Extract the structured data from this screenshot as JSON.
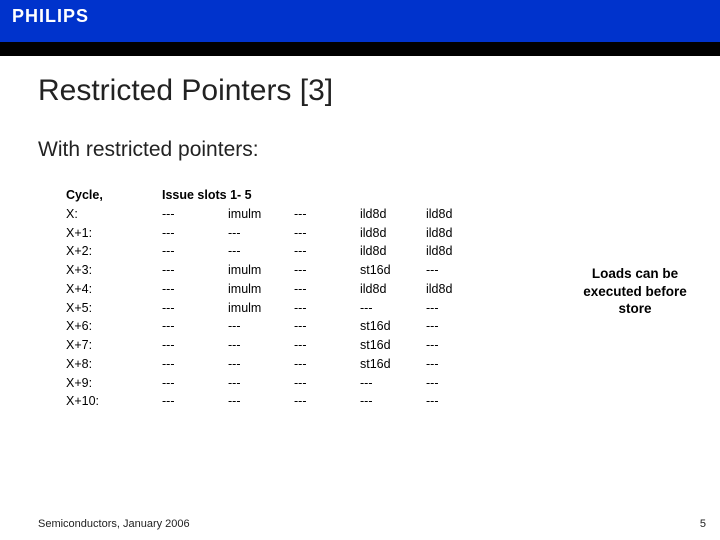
{
  "brand": "PHILIPS",
  "colors": {
    "header_blue": "#0033cc",
    "black_band": "#000000",
    "text": "#222222"
  },
  "title": "Restricted Pointers [3]",
  "subtitle": "With restricted pointers:",
  "cycle_header": "Cycle,",
  "cycles": [
    "X:",
    "X+1:",
    "X+2:",
    "X+3:",
    "X+4:",
    "X+5:",
    "X+6:",
    "X+7:",
    "X+8:",
    "X+9:",
    "X+10:"
  ],
  "slots_header": "Issue slots 1- 5",
  "slot1": [
    "---",
    "---",
    "---",
    "---",
    "---",
    "---",
    "---",
    "---",
    "---",
    "---",
    "---"
  ],
  "slot2": [
    "imulm",
    "---",
    "---",
    "imulm",
    "imulm",
    "imulm",
    "---",
    "---",
    "---",
    "---",
    "---"
  ],
  "slot3": [
    "---",
    "---",
    "---",
    "---",
    "---",
    "---",
    "---",
    "---",
    "---",
    "---",
    "---"
  ],
  "slot4": [
    "ild8d",
    "ild8d",
    "ild8d",
    "st16d",
    "ild8d",
    "---",
    "st16d",
    "st16d",
    "st16d",
    "---",
    "---"
  ],
  "slot5": [
    "ild8d",
    "ild8d",
    "ild8d",
    "---",
    "ild8d",
    "---",
    "---",
    "---",
    "---",
    "---",
    "---"
  ],
  "side_comment": "Loads can be executed before store",
  "footer": "Semiconductors, January 2006",
  "page_number": "5"
}
